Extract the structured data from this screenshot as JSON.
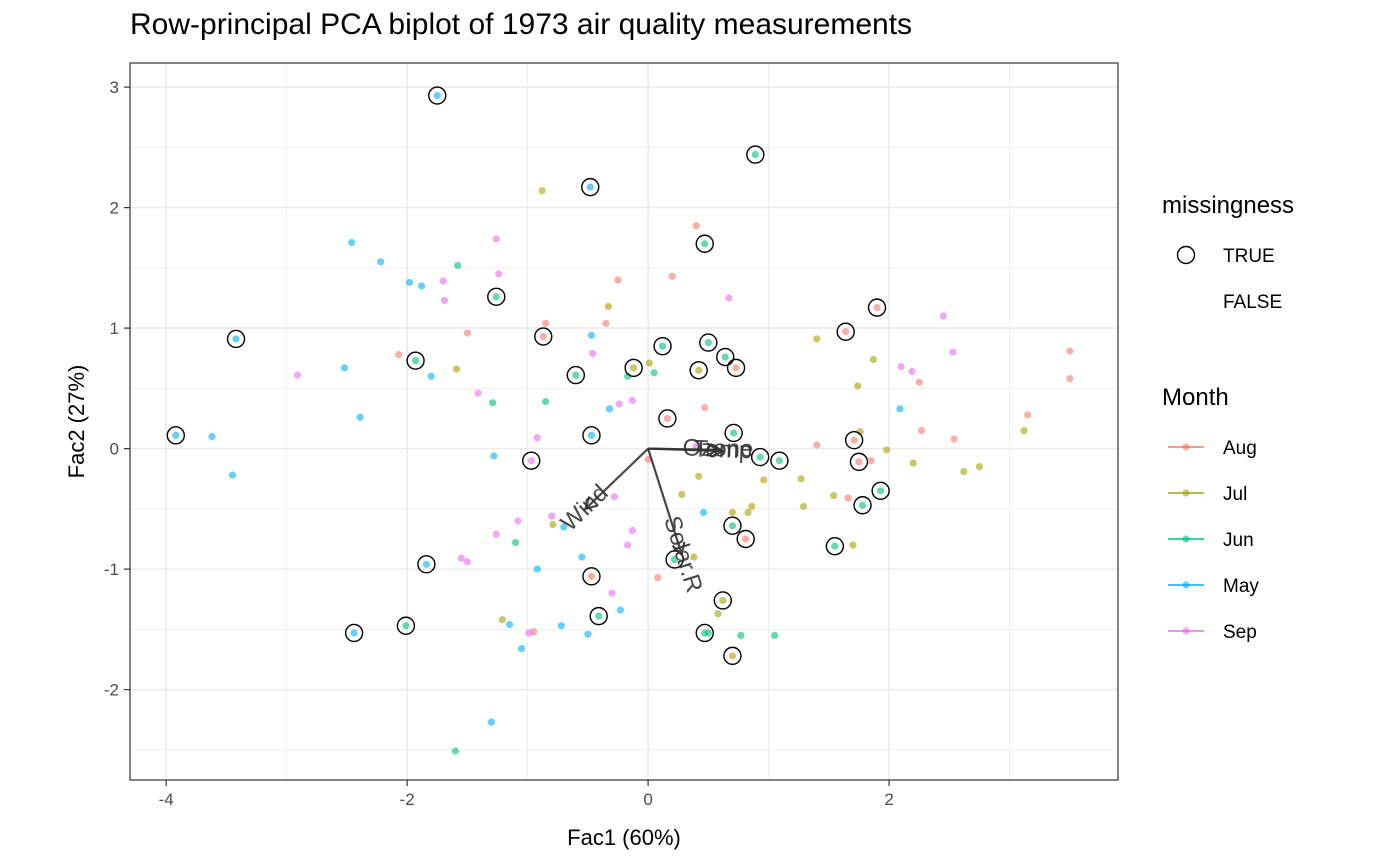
{
  "chart_data": {
    "type": "scatter",
    "title": "Row-principal PCA biplot of 1973 air quality measurements",
    "xlabel": "Fac1 (60%)",
    "ylabel": "Fac2 (27%)",
    "xlim": [
      -4.3,
      3.9
    ],
    "ylim": [
      -2.75,
      3.2
    ],
    "x_ticks": [
      -4,
      -2,
      0,
      2
    ],
    "x_tick_labels": [
      "-4",
      "-2",
      "0",
      "2"
    ],
    "y_ticks": [
      -2,
      -1,
      0,
      1,
      2,
      3
    ],
    "y_tick_labels": [
      "-2",
      "-1",
      "0",
      "1",
      "2",
      "3"
    ],
    "grid": true,
    "legend_placement": "right",
    "legend_missingness": {
      "title": "missingness",
      "entries": [
        "TRUE",
        "FALSE"
      ]
    },
    "legend_month": {
      "title": "Month",
      "entries": [
        "Aug",
        "Jul",
        "Jun",
        "May",
        "Sep"
      ]
    },
    "colors": {
      "Aug": "#F8766D",
      "Jul": "#A3A500",
      "Jun": "#00BF7D",
      "May": "#00B0F6",
      "Sep": "#E76BF3"
    },
    "vectors": [
      {
        "label": "Ozone",
        "x": 0.58,
        "y": -0.01
      },
      {
        "label": "Temp",
        "x": 0.62,
        "y": -0.02
      },
      {
        "label": "Wind",
        "x": -0.52,
        "y": -0.5
      },
      {
        "label": "Solar.R",
        "x": 0.28,
        "y": -0.88
      }
    ],
    "series": [
      {
        "name": "May",
        "points": [
          [
            -3.92,
            0.11,
            true
          ],
          [
            -3.42,
            0.91,
            true
          ],
          [
            -1.75,
            2.93,
            true
          ],
          [
            -2.44,
            -1.53,
            true
          ],
          [
            -1.84,
            -0.96,
            true
          ],
          [
            -0.47,
            0.11,
            true
          ],
          [
            -0.48,
            2.17,
            true
          ],
          [
            -3.62,
            0.1,
            false
          ],
          [
            -3.45,
            -0.22,
            false
          ],
          [
            -2.46,
            1.71,
            false
          ],
          [
            -2.22,
            1.55,
            false
          ],
          [
            -1.98,
            1.38,
            false
          ],
          [
            -1.88,
            1.35,
            false
          ],
          [
            -1.8,
            0.6,
            false
          ],
          [
            -2.52,
            0.67,
            false
          ],
          [
            -2.39,
            0.26,
            false
          ],
          [
            -1.3,
            -2.27,
            false
          ],
          [
            -1.05,
            -1.66,
            false
          ],
          [
            -1.15,
            -1.46,
            false
          ],
          [
            -0.92,
            -1.0,
            false
          ],
          [
            -0.7,
            -0.65,
            false
          ],
          [
            -0.55,
            -0.9,
            false
          ],
          [
            -0.72,
            -1.47,
            false
          ],
          [
            -0.5,
            -1.54,
            false
          ],
          [
            -0.23,
            -1.34,
            false
          ],
          [
            -0.47,
            0.94,
            false
          ],
          [
            -0.32,
            0.33,
            false
          ],
          [
            -1.28,
            -0.06,
            false
          ],
          [
            0.46,
            -0.53,
            false
          ],
          [
            2.09,
            0.33,
            false
          ]
        ]
      },
      {
        "name": "Jun",
        "points": [
          [
            -1.93,
            0.73,
            true
          ],
          [
            -1.26,
            1.26,
            true
          ],
          [
            -0.6,
            0.61,
            true
          ],
          [
            0.47,
            1.7,
            true
          ],
          [
            0.12,
            0.85,
            true
          ],
          [
            0.5,
            0.88,
            true
          ],
          [
            0.64,
            0.76,
            true
          ],
          [
            0.89,
            2.44,
            true
          ],
          [
            0.71,
            0.13,
            true
          ],
          [
            0.93,
            -0.07,
            true
          ],
          [
            1.09,
            -0.1,
            true
          ],
          [
            1.55,
            -0.81,
            true
          ],
          [
            1.78,
            -0.47,
            true
          ],
          [
            1.93,
            -0.35,
            true
          ],
          [
            0.22,
            -0.92,
            true
          ],
          [
            -0.41,
            -1.39,
            true
          ],
          [
            -2.01,
            -1.47,
            true
          ],
          [
            0.47,
            -1.53,
            true
          ],
          [
            0.7,
            -0.64,
            true
          ],
          [
            -1.58,
            1.52,
            false
          ],
          [
            -1.29,
            0.38,
            false
          ],
          [
            -0.85,
            0.39,
            false
          ],
          [
            -1.1,
            -0.78,
            false
          ],
          [
            -1.6,
            -2.51,
            false
          ],
          [
            -0.17,
            0.6,
            false
          ],
          [
            0.05,
            0.63,
            false
          ],
          [
            0.77,
            -1.55,
            false
          ],
          [
            1.05,
            -1.55,
            false
          ],
          [
            0.5,
            -1.53,
            false
          ]
        ]
      },
      {
        "name": "Jul",
        "points": [
          [
            -0.12,
            0.67,
            true
          ],
          [
            0.42,
            0.65,
            true
          ],
          [
            0.62,
            -1.26,
            true
          ],
          [
            0.7,
            -1.72,
            true
          ],
          [
            -0.88,
            2.14,
            false
          ],
          [
            -1.59,
            0.66,
            false
          ],
          [
            -0.33,
            1.18,
            false
          ],
          [
            0.01,
            0.71,
            false
          ],
          [
            0.42,
            -0.23,
            false
          ],
          [
            0.28,
            -0.38,
            false
          ],
          [
            0.7,
            -0.53,
            false
          ],
          [
            0.83,
            -0.53,
            false
          ],
          [
            0.86,
            -0.48,
            false
          ],
          [
            0.96,
            -0.26,
            false
          ],
          [
            1.27,
            -0.25,
            false
          ],
          [
            1.29,
            -0.48,
            false
          ],
          [
            1.4,
            0.91,
            false
          ],
          [
            1.74,
            0.52,
            false
          ],
          [
            1.76,
            0.14,
            false
          ],
          [
            1.87,
            0.74,
            false
          ],
          [
            1.98,
            -0.01,
            false
          ],
          [
            2.2,
            -0.12,
            false
          ],
          [
            2.62,
            -0.19,
            false
          ],
          [
            2.75,
            -0.15,
            false
          ],
          [
            3.12,
            0.15,
            false
          ],
          [
            1.54,
            -0.39,
            false
          ],
          [
            1.7,
            -0.8,
            false
          ],
          [
            -0.79,
            -0.63,
            false
          ],
          [
            -1.21,
            -1.42,
            false
          ],
          [
            0.58,
            -1.37,
            false
          ],
          [
            0.38,
            -0.9,
            false
          ]
        ]
      },
      {
        "name": "Aug",
        "points": [
          [
            -0.87,
            0.93,
            true
          ],
          [
            0.16,
            0.25,
            true
          ],
          [
            0.73,
            0.67,
            true
          ],
          [
            1.64,
            0.97,
            true
          ],
          [
            1.9,
            1.17,
            true
          ],
          [
            1.71,
            0.07,
            true
          ],
          [
            1.75,
            -0.11,
            true
          ],
          [
            0.81,
            -0.75,
            true
          ],
          [
            -0.47,
            -1.06,
            true
          ],
          [
            -2.07,
            0.78,
            false
          ],
          [
            -1.5,
            0.96,
            false
          ],
          [
            -0.85,
            1.04,
            false
          ],
          [
            -0.35,
            1.04,
            false
          ],
          [
            -0.25,
            1.4,
            false
          ],
          [
            0.2,
            1.43,
            false
          ],
          [
            0.4,
            1.85,
            false
          ],
          [
            0.47,
            0.34,
            false
          ],
          [
            1.4,
            0.03,
            false
          ],
          [
            1.66,
            -0.41,
            false
          ],
          [
            1.85,
            -0.1,
            false
          ],
          [
            2.25,
            0.55,
            false
          ],
          [
            2.27,
            0.15,
            false
          ],
          [
            2.54,
            0.08,
            false
          ],
          [
            3.15,
            0.28,
            false
          ],
          [
            3.5,
            0.81,
            false
          ],
          [
            3.5,
            0.58,
            false
          ],
          [
            0.08,
            -1.07,
            false
          ],
          [
            -0.95,
            -1.52,
            false
          ],
          [
            0.0,
            -0.09,
            false
          ]
        ]
      },
      {
        "name": "Sep",
        "points": [
          [
            -0.97,
            -0.1,
            true
          ],
          [
            -2.91,
            0.61,
            false
          ],
          [
            -1.26,
            1.74,
            false
          ],
          [
            -1.24,
            1.45,
            false
          ],
          [
            -1.7,
            1.39,
            false
          ],
          [
            -1.69,
            1.23,
            false
          ],
          [
            -1.41,
            0.46,
            false
          ],
          [
            -0.46,
            0.79,
            false
          ],
          [
            -0.24,
            0.37,
            false
          ],
          [
            -0.13,
            0.4,
            false
          ],
          [
            0.67,
            1.25,
            false
          ],
          [
            0.4,
            0.02,
            false
          ],
          [
            2.1,
            0.68,
            false
          ],
          [
            2.19,
            0.64,
            false
          ],
          [
            2.45,
            1.1,
            false
          ],
          [
            2.53,
            0.8,
            false
          ],
          [
            -0.92,
            0.09,
            false
          ],
          [
            -0.8,
            -0.56,
            false
          ],
          [
            -1.08,
            -0.6,
            false
          ],
          [
            -1.26,
            -0.71,
            false
          ],
          [
            -1.55,
            -0.91,
            false
          ],
          [
            -1.5,
            -0.94,
            false
          ],
          [
            -0.28,
            -0.4,
            false
          ],
          [
            -0.17,
            -0.8,
            false
          ],
          [
            -0.3,
            -1.2,
            false
          ],
          [
            -0.13,
            -0.68,
            false
          ],
          [
            -0.99,
            -1.53,
            false
          ]
        ]
      }
    ]
  }
}
